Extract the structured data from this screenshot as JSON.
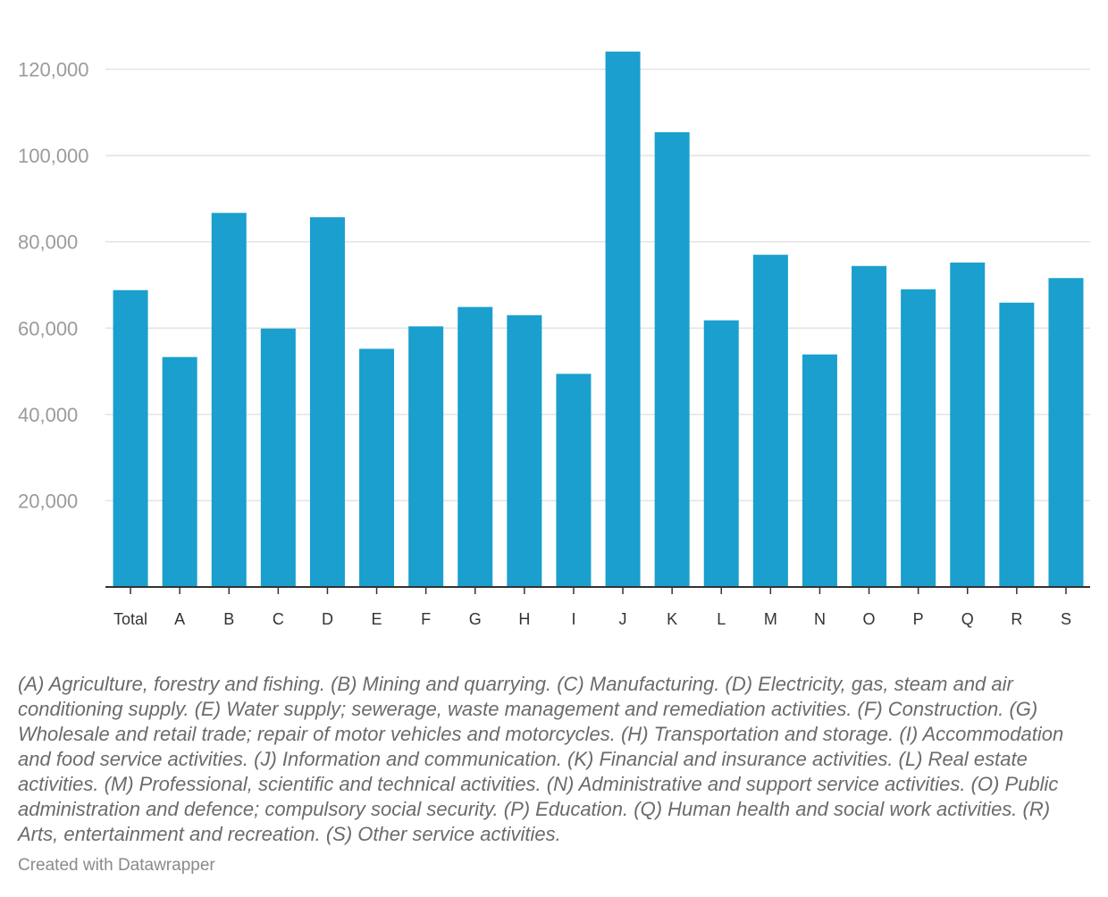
{
  "chart_data": {
    "type": "bar",
    "title": "",
    "xlabel": "",
    "ylabel": "",
    "categories": [
      "Total",
      "A",
      "B",
      "C",
      "D",
      "E",
      "F",
      "G",
      "H",
      "I",
      "J",
      "K",
      "L",
      "M",
      "N",
      "O",
      "P",
      "Q",
      "R",
      "S"
    ],
    "values": [
      68800,
      53300,
      86700,
      59900,
      85700,
      55200,
      60400,
      64900,
      63000,
      49400,
      124100,
      105400,
      61800,
      77000,
      53900,
      74400,
      69000,
      75200,
      65900,
      71600
    ],
    "ylim": [
      0,
      128000
    ],
    "yticks": [
      20000,
      40000,
      60000,
      80000,
      100000,
      120000
    ],
    "ytick_labels": [
      "20,000",
      "40,000",
      "60,000",
      "80,000",
      "100,000",
      "120,000"
    ],
    "grid": true,
    "bar_color": "#1a9fce"
  },
  "notes": "(A) Agriculture, forestry and fishing. (B) Mining and quarrying. (C) Manufacturing. (D) Electricity, gas, steam and air conditioning supply. (E) Water supply; sewerage, waste management and remediation activities. (F) Construction. (G) Wholesale and retail trade; repair of motor vehicles and motorcycles. (H) Transportation and storage. (I) Accommodation and food service activities. (J) Information and communication. (K) Financial and insurance activities. (L) Real estate activities. (M) Professional, scientific and technical activities. (N) Administrative and support service activities. (O) Public administration and defence; compulsory social security. (P) Education. (Q) Human health and social work activities. (R) Arts, entertainment and recreation. (S) Other service activities.",
  "credit": "Created with Datawrapper"
}
